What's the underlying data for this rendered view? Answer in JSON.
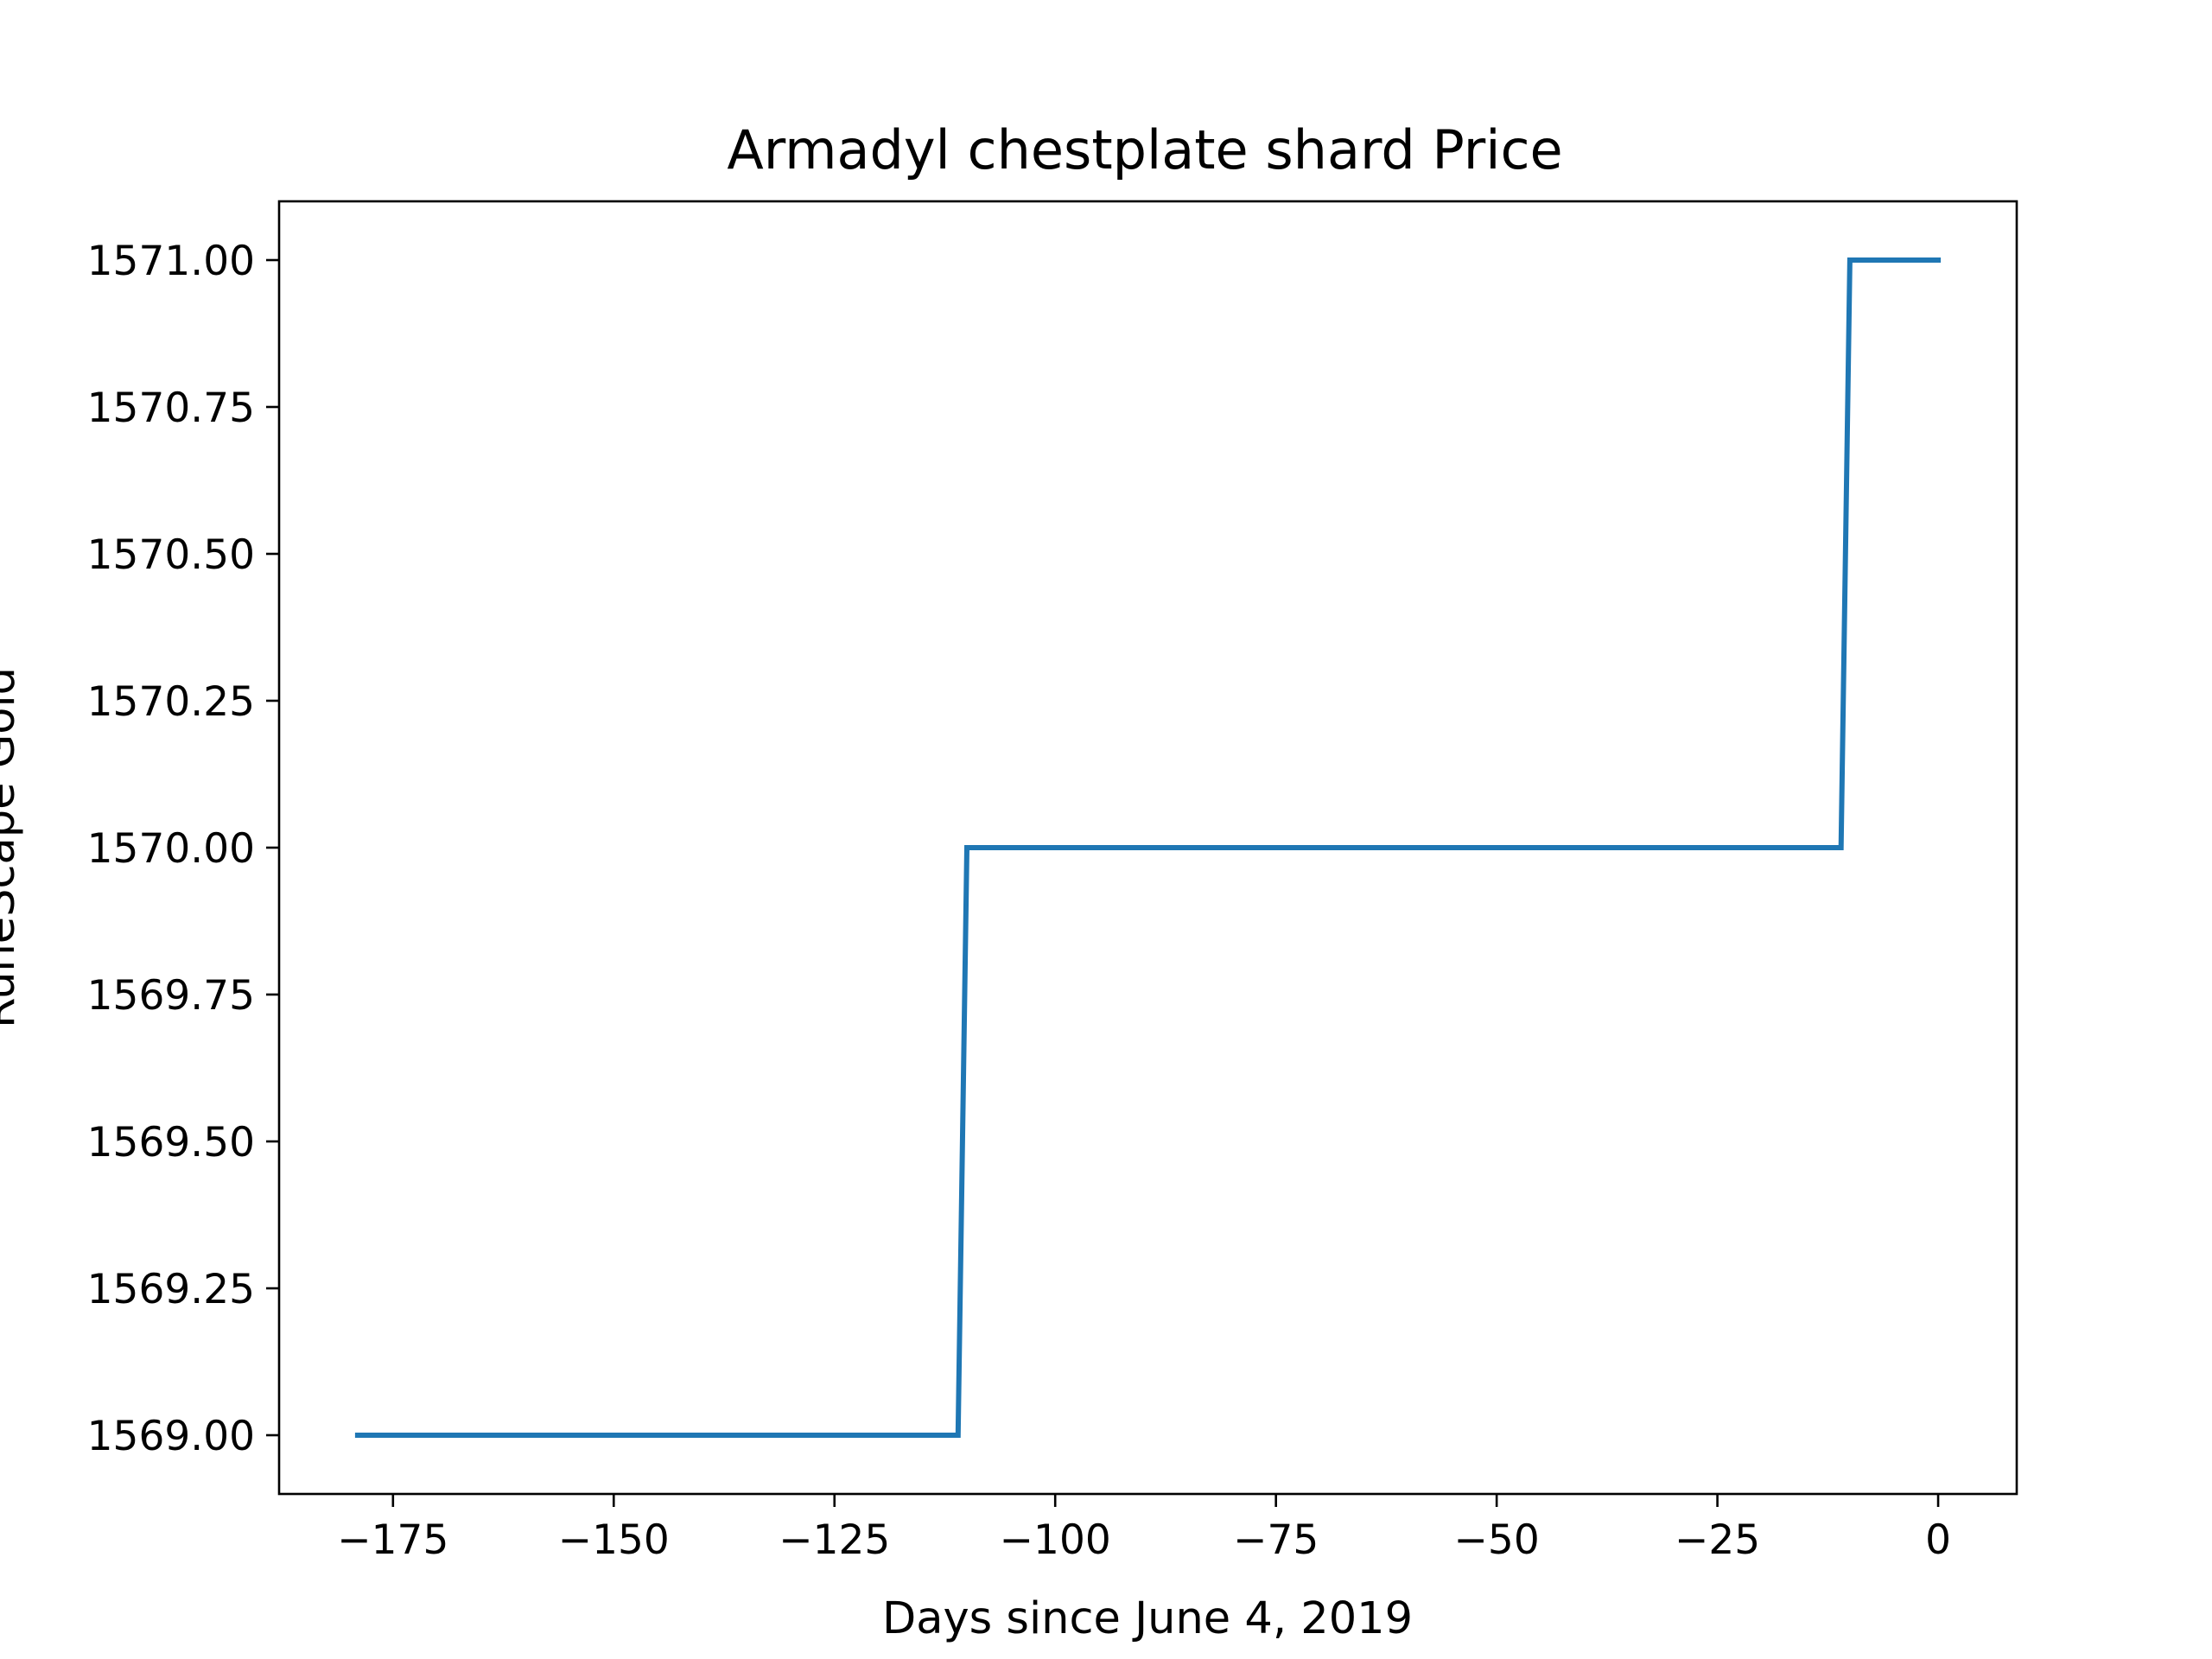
{
  "chart_data": {
    "type": "line",
    "title": "Armadyl chestplate shard Price",
    "xlabel": "Days since June 4, 2019",
    "ylabel": "RuneScape Gold",
    "xlim": [
      -187.9,
      8.9
    ],
    "ylim": [
      1568.9,
      1571.1
    ],
    "x_ticks": [
      -175,
      -150,
      -125,
      -100,
      -75,
      -50,
      -25,
      0
    ],
    "x_tick_labels": [
      "−175",
      "−150",
      "−125",
      "−100",
      "−75",
      "−50",
      "−25",
      "0"
    ],
    "y_ticks": [
      1569.0,
      1569.25,
      1569.5,
      1569.75,
      1570.0,
      1570.25,
      1570.5,
      1570.75,
      1571.0
    ],
    "y_tick_labels": [
      "1569.00",
      "1569.25",
      "1569.50",
      "1569.75",
      "1570.00",
      "1570.25",
      "1570.50",
      "1570.75",
      "1571.00"
    ],
    "grid": false,
    "colors": {
      "line": "#1f77b4",
      "axes": "#000000",
      "background": "#ffffff"
    },
    "series": [
      {
        "x": [
          -179,
          -111,
          -110,
          -11,
          -10,
          0
        ],
        "y": [
          1569,
          1569,
          1570,
          1570,
          1571,
          1571
        ]
      }
    ]
  }
}
